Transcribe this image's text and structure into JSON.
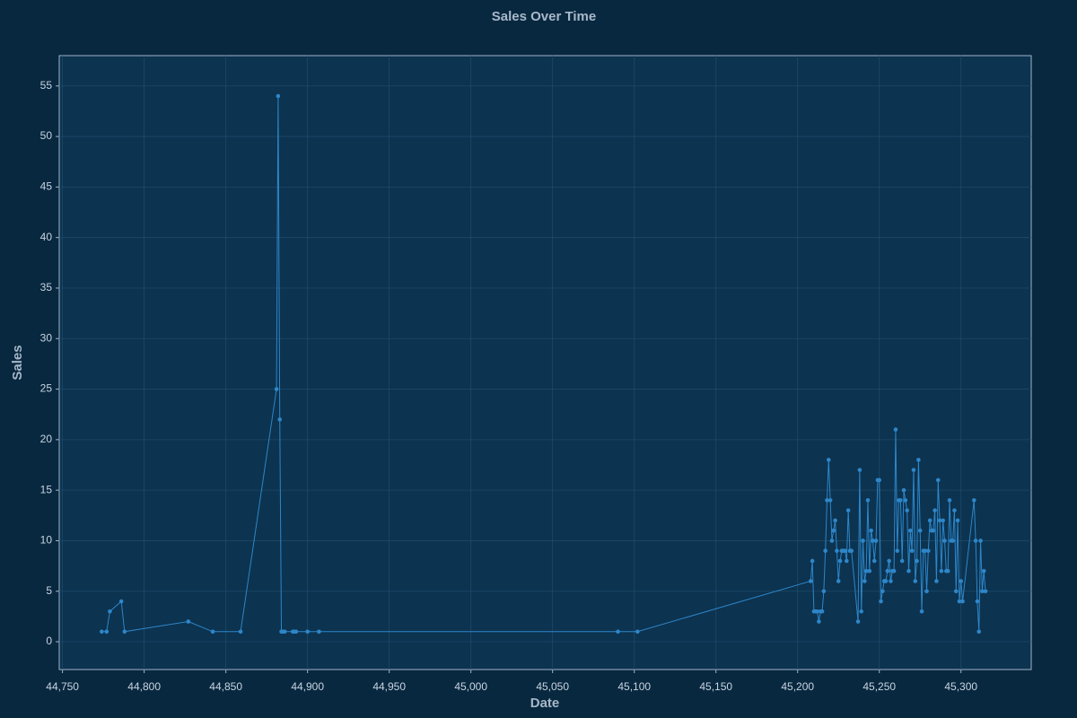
{
  "chart_data": {
    "type": "line",
    "title": "Sales Over Time",
    "x_label": "Date",
    "y_label": "Sales",
    "x": [
      44774,
      44777,
      44779,
      44786,
      44788,
      44827,
      44842,
      44859,
      44881,
      44882,
      44883,
      44884,
      44885,
      44886,
      44891,
      44892,
      44893,
      44900,
      44907,
      45090,
      45102,
      45208,
      45209,
      45210,
      45211,
      45212,
      45213,
      45214,
      45215,
      45216,
      45217,
      45218,
      45219,
      45220,
      45221,
      45222,
      45223,
      45224,
      45225,
      45226,
      45227,
      45228,
      45229,
      45230,
      45231,
      45232,
      45233,
      45237,
      45238,
      45239,
      45240,
      45241,
      45242,
      45243,
      45244,
      45245,
      45246,
      45247,
      45248,
      45249,
      45250,
      45251,
      45252,
      45253,
      45254,
      45255,
      45256,
      45257,
      45258,
      45259,
      45260,
      45261,
      45262,
      45263,
      45264,
      45265,
      45266,
      45267,
      45268,
      45269,
      45270,
      45271,
      45272,
      45273,
      45274,
      45275,
      45276,
      45277,
      45278,
      45279,
      45280,
      45281,
      45282,
      45283,
      45284,
      45285,
      45286,
      45287,
      45288,
      45289,
      45290,
      45291,
      45292,
      45293,
      45294,
      45295,
      45296,
      45297,
      45298,
      45299,
      45300,
      45301,
      45308,
      45309,
      45310,
      45311,
      45312,
      45313,
      45314,
      45315
    ],
    "series": [
      {
        "name": "Sales",
        "color": "#2e86c8",
        "values": [
          1,
          1,
          3,
          4,
          1,
          2,
          1,
          1,
          25,
          54,
          22,
          1,
          1,
          1,
          1,
          1,
          1,
          1,
          1,
          1,
          1,
          6,
          8,
          3,
          3,
          3,
          2,
          3,
          3,
          5,
          9,
          14,
          18,
          14,
          10,
          11,
          12,
          9,
          6,
          8,
          9,
          9,
          9,
          8,
          13,
          9,
          9,
          2,
          17,
          3,
          10,
          6,
          7,
          14,
          7,
          11,
          10,
          8,
          10,
          16,
          16,
          4,
          5,
          6,
          6,
          7,
          8,
          6,
          7,
          7,
          21,
          9,
          14,
          14,
          8,
          15,
          14,
          13,
          7,
          11,
          9,
          17,
          6,
          8,
          18,
          11,
          3,
          9,
          9,
          5,
          9,
          12,
          11,
          11,
          13,
          6,
          16,
          12,
          7,
          12,
          10,
          7,
          7,
          14,
          10,
          10,
          13,
          5,
          12,
          4,
          6,
          4,
          14,
          10,
          4,
          1,
          10,
          5,
          7,
          5
        ]
      }
    ],
    "xlim": [
      44748,
      45343
    ],
    "ylim": [
      -2.75,
      58
    ],
    "xticks": [
      {
        "value": 44750,
        "label": "44,750"
      },
      {
        "value": 44800,
        "label": "44,800"
      },
      {
        "value": 44850,
        "label": "44,850"
      },
      {
        "value": 44900,
        "label": "44,900"
      },
      {
        "value": 44950,
        "label": "44,950"
      },
      {
        "value": 45000,
        "label": "45,000"
      },
      {
        "value": 45050,
        "label": "45,050"
      },
      {
        "value": 45100,
        "label": "45,100"
      },
      {
        "value": 45150,
        "label": "45,150"
      },
      {
        "value": 45200,
        "label": "45,200"
      },
      {
        "value": 45250,
        "label": "45,250"
      },
      {
        "value": 45300,
        "label": "45,300"
      }
    ],
    "yticks": [
      0,
      5,
      10,
      15,
      20,
      25,
      30,
      35,
      40,
      45,
      50,
      55
    ],
    "grid": true
  }
}
